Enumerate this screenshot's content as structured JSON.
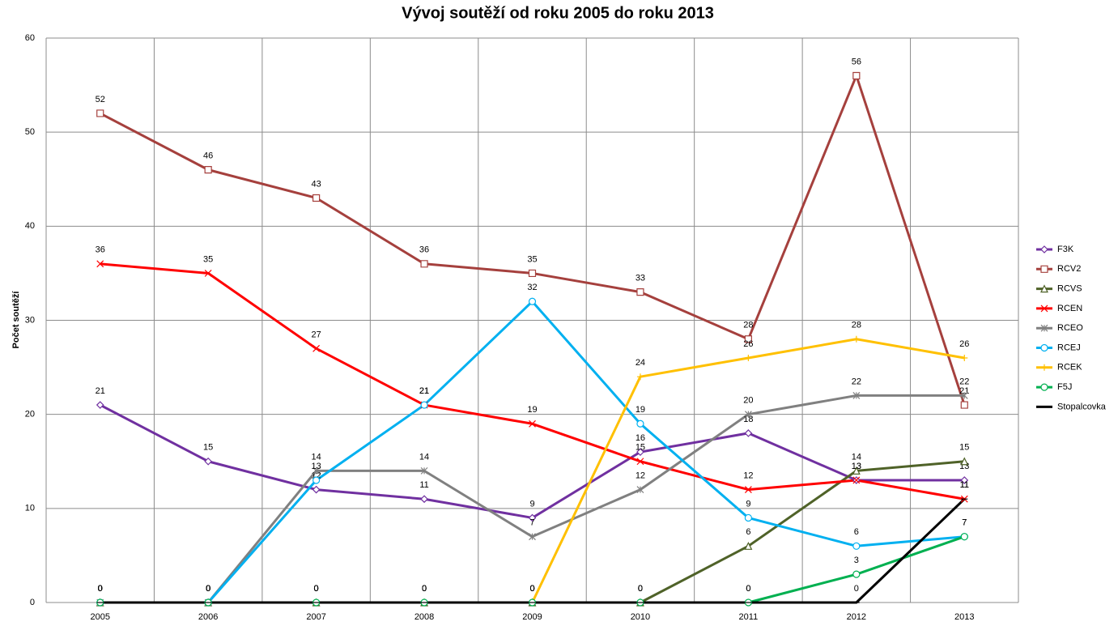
{
  "chart_data": {
    "type": "line",
    "title": "Vývoj soutěží od roku 2005 do roku 2013",
    "y_label": "Počet soutěží",
    "categories": [
      "2005",
      "2006",
      "2007",
      "2008",
      "2009",
      "2010",
      "2011",
      "2012",
      "2013"
    ],
    "series": [
      {
        "name": "F3K",
        "color": "#7030a0",
        "marker": "diamond",
        "values": [
          21,
          15,
          12,
          11,
          9,
          16,
          18,
          13,
          13
        ]
      },
      {
        "name": "RCV2",
        "color": "#a5403d",
        "marker": "square",
        "values": [
          52,
          46,
          43,
          36,
          35,
          33,
          28,
          56,
          21
        ]
      },
      {
        "name": "RCVS",
        "color": "#4f6228",
        "marker": "triangle",
        "values": [
          0,
          0,
          0,
          0,
          0,
          0,
          6,
          14,
          15
        ]
      },
      {
        "name": "RCEN",
        "color": "#ff0000",
        "marker": "x",
        "values": [
          36,
          35,
          27,
          21,
          19,
          15,
          12,
          13,
          11
        ]
      },
      {
        "name": "RCEO",
        "color": "#808080",
        "marker": "asterisk",
        "values": [
          0,
          0,
          14,
          14,
          7,
          12,
          20,
          22,
          22
        ]
      },
      {
        "name": "RCEJ",
        "color": "#00b0f0",
        "marker": "circle",
        "values": [
          0,
          0,
          13,
          21,
          32,
          19,
          9,
          6,
          7
        ]
      },
      {
        "name": "RCEK",
        "color": "#ffc000",
        "marker": "plus",
        "values": [
          0,
          0,
          0,
          0,
          0,
          24,
          26,
          28,
          26
        ]
      },
      {
        "name": "F5J",
        "color": "#00b050",
        "marker": "circle",
        "values": [
          0,
          0,
          0,
          0,
          0,
          0,
          0,
          3,
          7
        ]
      },
      {
        "name": "Stopalcovka",
        "color": "#000000",
        "marker": "dash",
        "values": [
          0,
          0,
          0,
          0,
          0,
          0,
          0,
          0,
          11
        ]
      }
    ],
    "ylim": [
      0,
      60
    ],
    "yticks": [
      0,
      10,
      20,
      30,
      40,
      50,
      60
    ],
    "grid": true,
    "legend": "right"
  }
}
